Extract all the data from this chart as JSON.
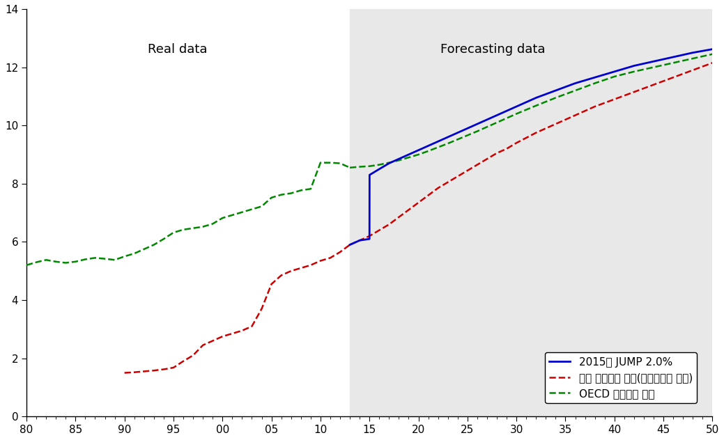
{
  "title_real": "Real data",
  "title_forecast": "Forecasting data",
  "forecast_start_year": 2013,
  "xlim": [
    1980,
    2050
  ],
  "ylim": [
    0,
    14
  ],
  "xtick_years": [
    1980,
    1985,
    1990,
    1995,
    2000,
    2005,
    2010,
    2015,
    2020,
    2025,
    2030,
    2035,
    2040,
    2045,
    2050
  ],
  "xtick_labels": [
    "80",
    "85",
    "90",
    "95",
    "00",
    "05",
    "10",
    "15",
    "20",
    "25",
    "30",
    "35",
    "40",
    "45",
    "50"
  ],
  "yticks": [
    0,
    2,
    4,
    6,
    8,
    10,
    12,
    14
  ],
  "legend_labels": [
    "2015년 JUMP 2.0%",
    "한국 사회지출 현물(현재추세로 예측)",
    "OECD 사회지출 현물"
  ],
  "korea_real_x": [
    1990,
    1991,
    1992,
    1993,
    1994,
    1995,
    1996,
    1997,
    1998,
    1999,
    2000,
    2001,
    2002,
    2003,
    2004,
    2005,
    2006,
    2007,
    2008,
    2009,
    2010,
    2011,
    2012,
    2013
  ],
  "korea_real_y": [
    1.5,
    1.52,
    1.55,
    1.58,
    1.62,
    1.68,
    1.9,
    2.1,
    2.45,
    2.6,
    2.75,
    2.85,
    2.95,
    3.1,
    3.7,
    4.55,
    4.85,
    5.0,
    5.1,
    5.2,
    5.35,
    5.45,
    5.65,
    5.9
  ],
  "korea_forecast_x": [
    2013,
    2014,
    2015,
    2016,
    2017,
    2018,
    2019,
    2020,
    2021,
    2022,
    2023,
    2024,
    2025,
    2026,
    2027,
    2028,
    2029,
    2030,
    2032,
    2034,
    2036,
    2038,
    2040,
    2042,
    2044,
    2046,
    2048,
    2050
  ],
  "korea_forecast_y": [
    5.9,
    6.05,
    6.2,
    6.4,
    6.6,
    6.85,
    7.1,
    7.35,
    7.6,
    7.85,
    8.05,
    8.25,
    8.45,
    8.65,
    8.85,
    9.05,
    9.2,
    9.4,
    9.75,
    10.05,
    10.35,
    10.65,
    10.9,
    11.15,
    11.4,
    11.65,
    11.9,
    12.15
  ],
  "jump_x": [
    2013,
    2014,
    2015,
    2015.01,
    2016,
    2017,
    2018,
    2019,
    2020,
    2021,
    2022,
    2023,
    2024,
    2025,
    2026,
    2027,
    2028,
    2029,
    2030,
    2032,
    2034,
    2036,
    2038,
    2040,
    2042,
    2044,
    2046,
    2048,
    2050
  ],
  "jump_y": [
    5.9,
    6.05,
    6.1,
    8.3,
    8.5,
    8.7,
    8.85,
    9.0,
    9.15,
    9.3,
    9.45,
    9.6,
    9.75,
    9.9,
    10.05,
    10.2,
    10.35,
    10.5,
    10.65,
    10.95,
    11.2,
    11.45,
    11.65,
    11.85,
    12.05,
    12.2,
    12.35,
    12.5,
    12.62
  ],
  "oecd_real_x": [
    1980,
    1981,
    1982,
    1983,
    1984,
    1985,
    1986,
    1987,
    1988,
    1989,
    1990,
    1991,
    1992,
    1993,
    1994,
    1995,
    1996,
    1997,
    1998,
    1999,
    2000,
    2001,
    2002,
    2003,
    2004,
    2005,
    2006,
    2007,
    2008,
    2009,
    2010,
    2011,
    2012,
    2013
  ],
  "oecd_real_y": [
    5.2,
    5.3,
    5.38,
    5.32,
    5.28,
    5.32,
    5.4,
    5.45,
    5.42,
    5.38,
    5.5,
    5.6,
    5.75,
    5.9,
    6.1,
    6.32,
    6.42,
    6.47,
    6.52,
    6.62,
    6.82,
    6.92,
    7.02,
    7.12,
    7.22,
    7.52,
    7.62,
    7.67,
    7.77,
    7.82,
    8.72,
    8.72,
    8.7,
    8.55
  ],
  "oecd_forecast_x": [
    2013,
    2014,
    2015,
    2016,
    2017,
    2018,
    2019,
    2020,
    2021,
    2022,
    2023,
    2024,
    2025,
    2026,
    2027,
    2028,
    2029,
    2030,
    2032,
    2034,
    2036,
    2038,
    2040,
    2042,
    2044,
    2046,
    2048,
    2050
  ],
  "oecd_forecast_y": [
    8.55,
    8.58,
    8.6,
    8.65,
    8.72,
    8.8,
    8.9,
    9.0,
    9.12,
    9.25,
    9.38,
    9.52,
    9.66,
    9.8,
    9.95,
    10.1,
    10.25,
    10.4,
    10.68,
    10.95,
    11.2,
    11.45,
    11.68,
    11.85,
    12.0,
    12.15,
    12.3,
    12.45
  ],
  "korea_color": "#cc0000",
  "jump_color": "#0000cc",
  "oecd_color": "#008800",
  "forecast_bg_color": "#e8e8e8"
}
